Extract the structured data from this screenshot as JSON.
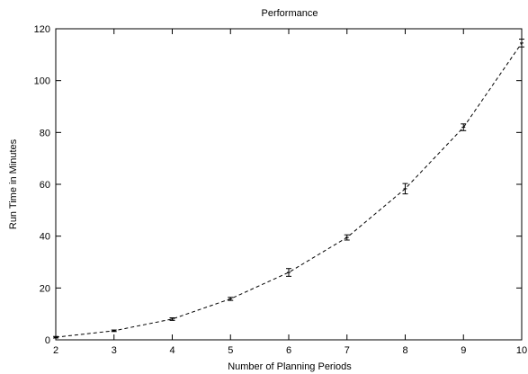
{
  "chart_data": {
    "type": "line",
    "title": "Performance",
    "xlabel": "Number of Planning Periods",
    "ylabel": "Run Time in Minutes",
    "xlim": [
      2,
      10
    ],
    "ylim": [
      0,
      120
    ],
    "xticks": [
      2,
      3,
      4,
      5,
      6,
      7,
      8,
      9,
      10
    ],
    "yticks": [
      0,
      20,
      40,
      60,
      80,
      100,
      120
    ],
    "grid": false,
    "legend": "none",
    "series": [
      {
        "line_style": "dashed",
        "color": "#000000",
        "points": [
          {
            "x": 2,
            "y": 1.0,
            "err": 0.3
          },
          {
            "x": 3,
            "y": 3.5,
            "err": 0.3
          },
          {
            "x": 4,
            "y": 8.0,
            "err": 0.5
          },
          {
            "x": 5,
            "y": 15.8,
            "err": 0.6
          },
          {
            "x": 6,
            "y": 26.0,
            "err": 1.5
          },
          {
            "x": 7,
            "y": 39.5,
            "err": 1.0
          },
          {
            "x": 8,
            "y": 58.3,
            "err": 2.0
          },
          {
            "x": 9,
            "y": 82.0,
            "err": 1.3
          },
          {
            "x": 10,
            "y": 114.5,
            "err": 1.5
          }
        ]
      }
    ]
  }
}
